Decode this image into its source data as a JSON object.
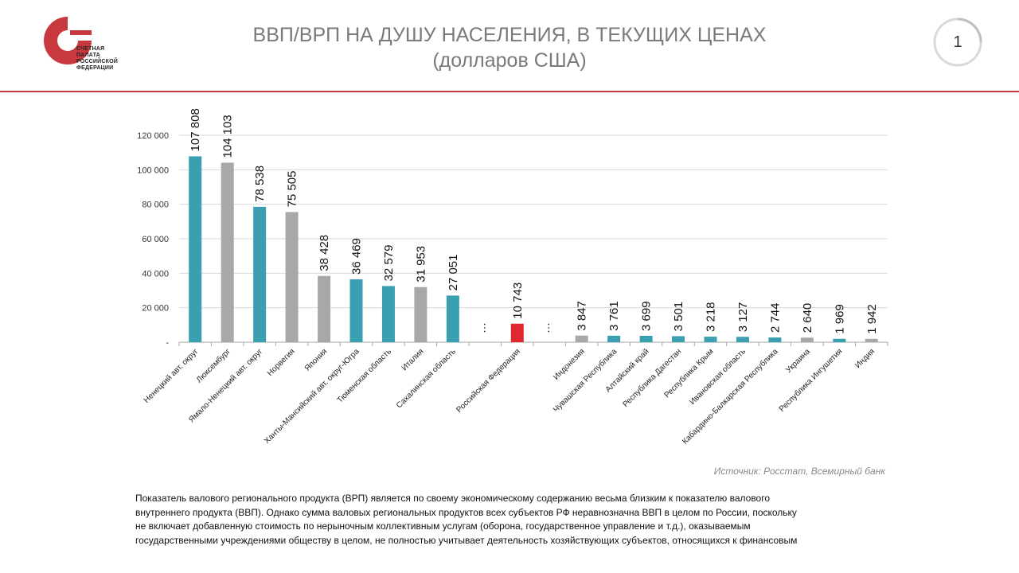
{
  "logo": {
    "lines": [
      "СЧЕТНАЯ",
      "ПАЛАТА",
      "РОССИЙСКОЙ",
      "ФЕДЕРАЦИИ"
    ],
    "color": "#c8383f"
  },
  "header": {
    "title_line1": "ВВП/ВРП НА ДУШУ НАСЕЛЕНИЯ, В ТЕКУЩИХ ЦЕНАХ",
    "title_line2": "(долларов США)",
    "page_number": "1"
  },
  "chart_data": {
    "type": "bar",
    "categories": [
      "Ненецкий авт. округ",
      "Люксембург",
      "Ямало-Ненецкий авт. округ",
      "Норвегия",
      "Япония",
      "Ханты-Мансийский авт. округ-Югра",
      "Тюменская область",
      "Италия",
      "Сахалинская область",
      "",
      "Российская Федерация",
      "",
      "Индонезия",
      "Чувашская Республика",
      "Алтайский край",
      "Республика Дагестан",
      "Республика Крым",
      "Ивановская область",
      "Кабардино-Балкарская Республика",
      "Украина",
      "Республика Ингушетия",
      "Индия"
    ],
    "values": [
      107808,
      104103,
      78538,
      75505,
      38428,
      36469,
      32579,
      31953,
      27051,
      null,
      10743,
      null,
      3847,
      3761,
      3699,
      3501,
      3218,
      3127,
      2744,
      2640,
      1969,
      1942
    ],
    "value_labels": [
      "107 808",
      "104 103",
      "78 538",
      "75 505",
      "38 428",
      "36 469",
      "32 579",
      "31 953",
      "27 051",
      "…",
      "10 743",
      "…",
      "3 847",
      "3 761",
      "3 699",
      "3 501",
      "3 218",
      "3 127",
      "2 744",
      "2 640",
      "1 969",
      "1 942"
    ],
    "bar_colors": [
      "#3a9fb1",
      "#a8a8a8",
      "#3a9fb1",
      "#a8a8a8",
      "#a8a8a8",
      "#3a9fb1",
      "#3a9fb1",
      "#a8a8a8",
      "#3a9fb1",
      null,
      "#e0282e",
      null,
      "#a8a8a8",
      "#3a9fb1",
      "#3a9fb1",
      "#3a9fb1",
      "#3a9fb1",
      "#3a9fb1",
      "#3a9fb1",
      "#a8a8a8",
      "#3a9fb1",
      "#a8a8a8"
    ],
    "yticks": [
      "-",
      "20 000",
      "40 000",
      "60 000",
      "80 000",
      "100 000",
      "120 000"
    ],
    "ylim": [
      0,
      120000
    ],
    "grid": true,
    "title": "",
    "xlabel": "",
    "ylabel": ""
  },
  "source_text": "Источник: Росстат, Всемирный банк",
  "body_lines": [
    "Показатель валового регионального продукта (ВРП) является по своему экономическому содержанию весьма близким к показателю валового",
    "внутреннего продукта (ВВП). Однако сумма валовых региональных продуктов всех субъектов РФ неравнозначна ВВП в целом по России, поскольку",
    "не включает добавленную стоимость по нерыночным коллективным услугам (оборона, государственное управление и т.д.), оказываемым",
    "государственными учреждениями обществу в целом, не полностью учитывает деятельность хозяйствующих субъектов, относящихся к финансовым"
  ]
}
